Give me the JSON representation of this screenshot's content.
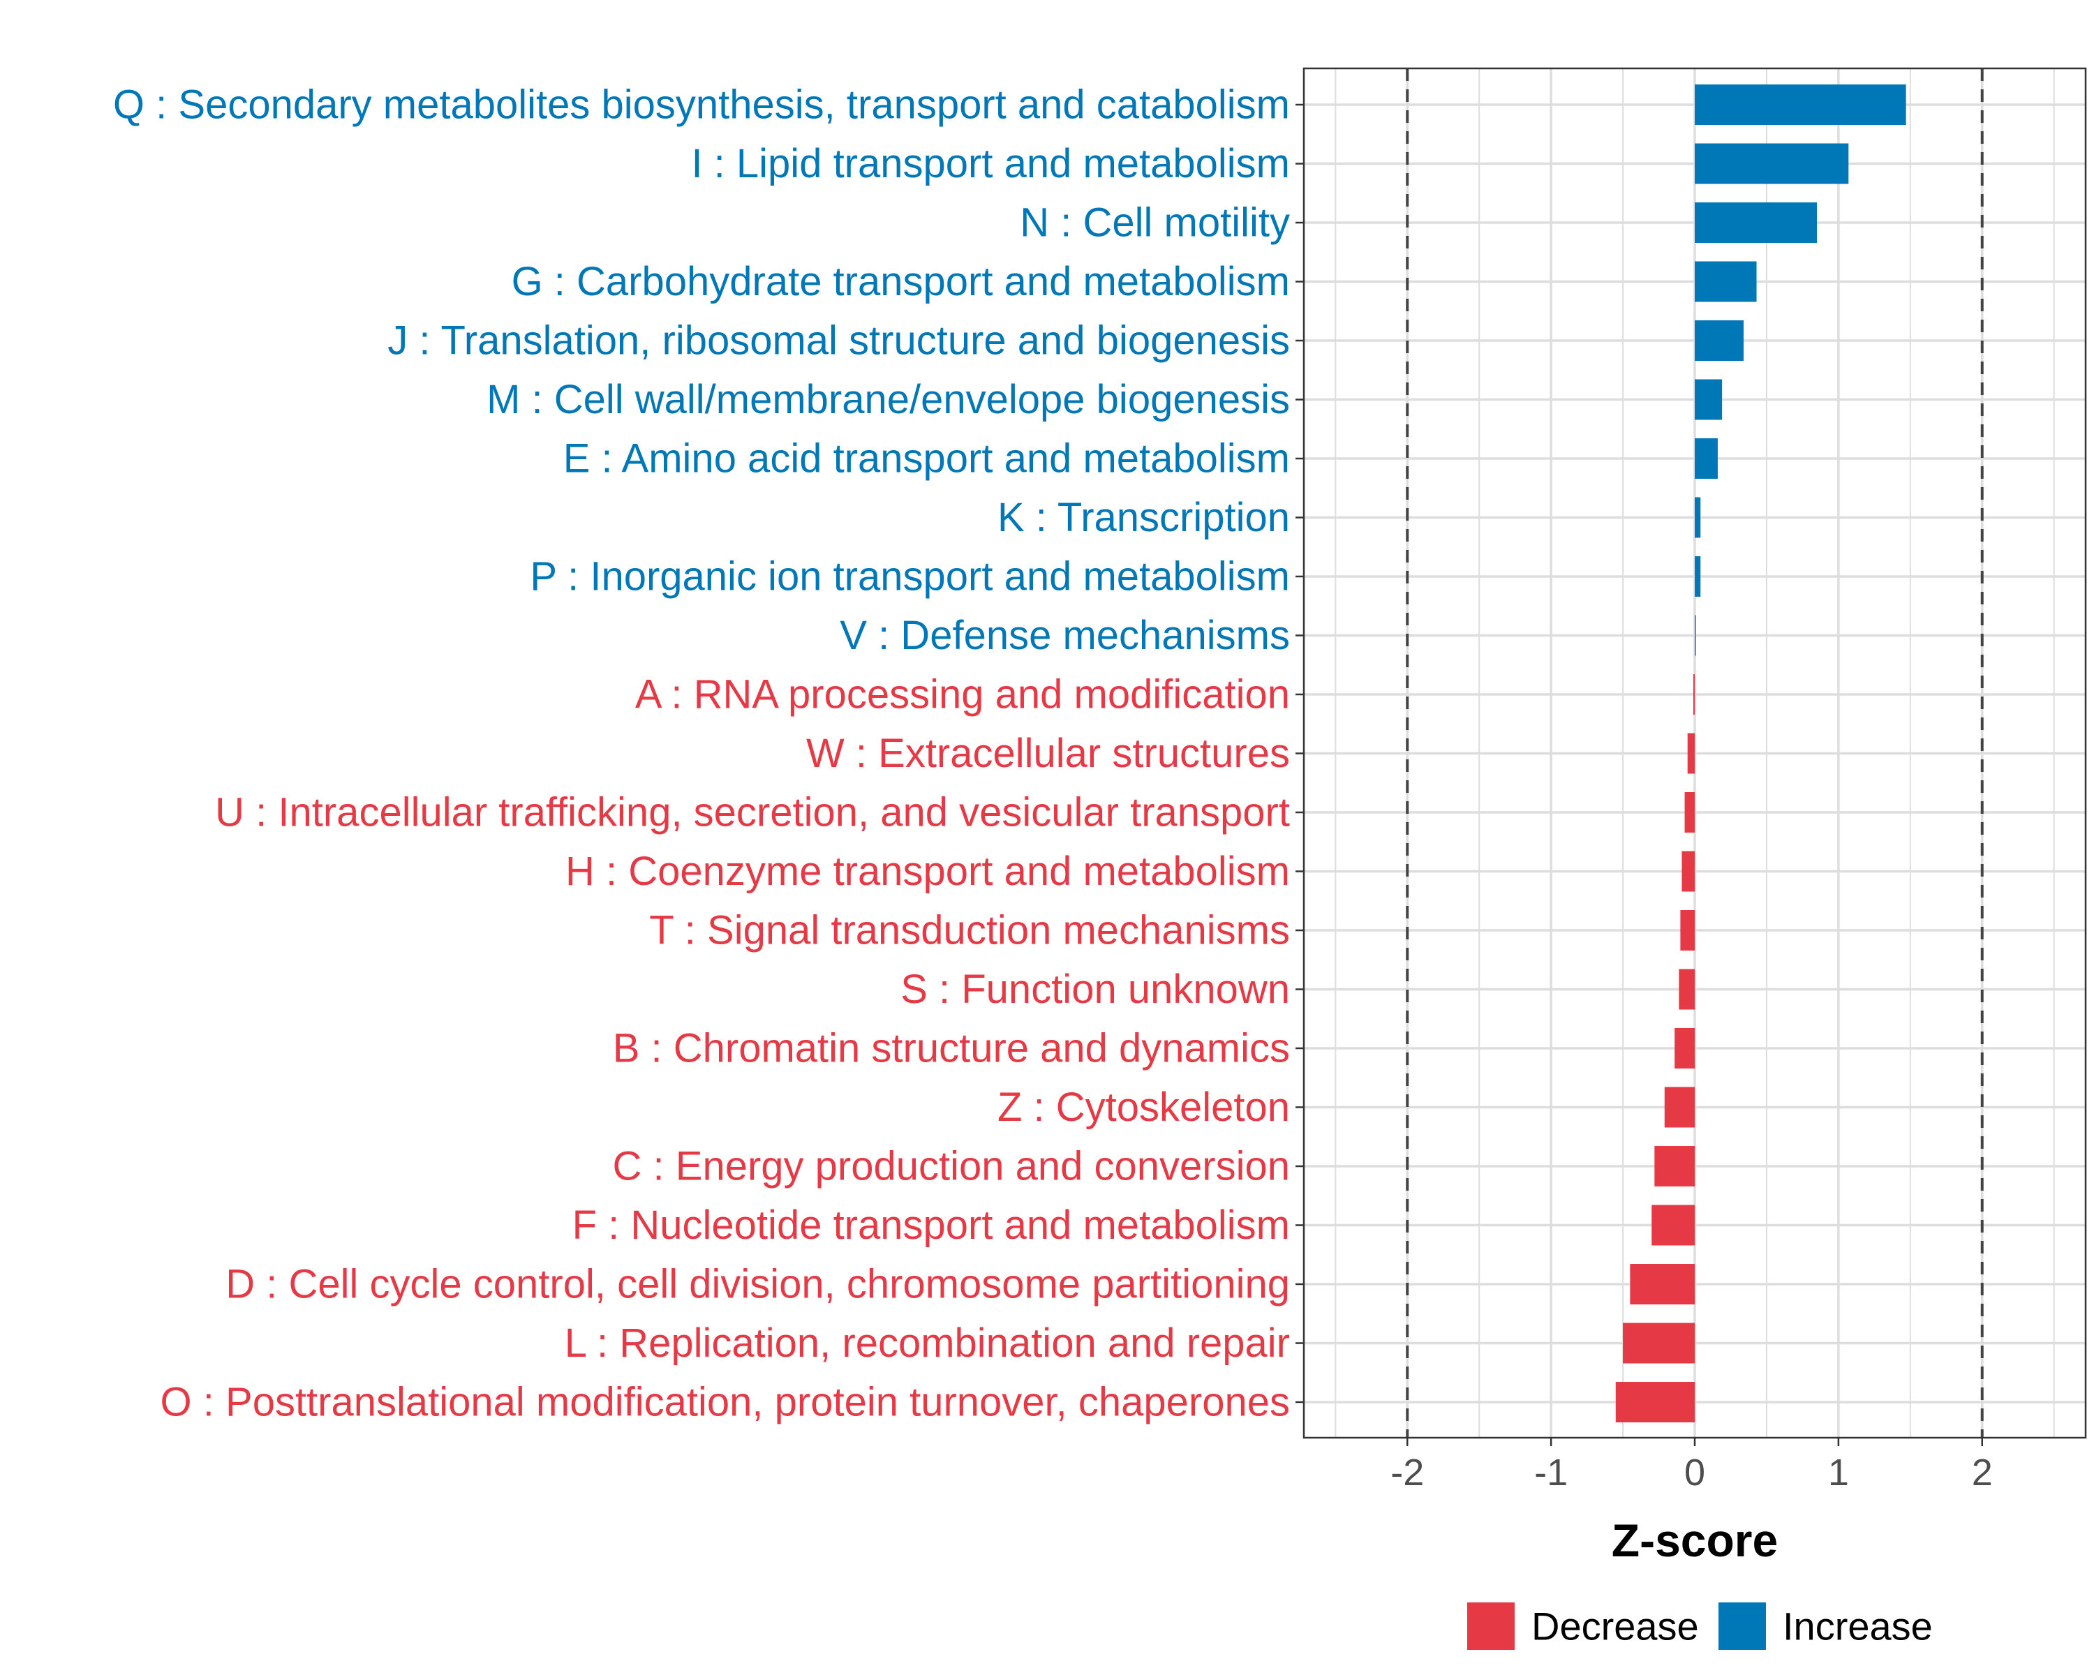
{
  "chart_data": {
    "type": "bar",
    "orientation": "horizontal",
    "xlabel": "Z-score",
    "xlim": [
      -2.72,
      2.72
    ],
    "xticks": [
      -2,
      -1,
      0,
      1,
      2
    ],
    "xtick_labels": [
      "-2",
      "-1",
      "0",
      "1",
      "2"
    ],
    "reference_lines": [
      -2,
      2
    ],
    "grid": true,
    "legend_position": "bottom",
    "colors": {
      "Decrease": "#e63946",
      "Increase": "#0077b6"
    },
    "legend": [
      {
        "key": "Decrease",
        "label": "Decrease"
      },
      {
        "key": "Increase",
        "label": "Increase"
      }
    ],
    "bars": [
      {
        "label": "Q : Secondary metabolites biosynthesis, transport and catabolism",
        "value": 1.47,
        "group": "Increase"
      },
      {
        "label": "I : Lipid transport and metabolism",
        "value": 1.07,
        "group": "Increase"
      },
      {
        "label": "N : Cell motility",
        "value": 0.85,
        "group": "Increase"
      },
      {
        "label": "G : Carbohydrate transport and metabolism",
        "value": 0.43,
        "group": "Increase"
      },
      {
        "label": "J : Translation, ribosomal structure and biogenesis",
        "value": 0.34,
        "group": "Increase"
      },
      {
        "label": "M : Cell wall/membrane/envelope biogenesis",
        "value": 0.19,
        "group": "Increase"
      },
      {
        "label": "E : Amino acid transport and metabolism",
        "value": 0.16,
        "group": "Increase"
      },
      {
        "label": "K : Transcription",
        "value": 0.04,
        "group": "Increase"
      },
      {
        "label": "P : Inorganic ion transport and metabolism",
        "value": 0.04,
        "group": "Increase"
      },
      {
        "label": "V : Defense mechanisms",
        "value": 0.005,
        "group": "Increase"
      },
      {
        "label": "A : RNA processing and modification",
        "value": -0.01,
        "group": "Decrease"
      },
      {
        "label": "W : Extracellular structures",
        "value": -0.05,
        "group": "Decrease"
      },
      {
        "label": "U : Intracellular trafficking, secretion, and vesicular transport",
        "value": -0.07,
        "group": "Decrease"
      },
      {
        "label": "H : Coenzyme transport and metabolism",
        "value": -0.09,
        "group": "Decrease"
      },
      {
        "label": "T : Signal transduction mechanisms",
        "value": -0.1,
        "group": "Decrease"
      },
      {
        "label": "S : Function unknown",
        "value": -0.11,
        "group": "Decrease"
      },
      {
        "label": "B : Chromatin structure and dynamics",
        "value": -0.14,
        "group": "Decrease"
      },
      {
        "label": "Z : Cytoskeleton",
        "value": -0.21,
        "group": "Decrease"
      },
      {
        "label": "C : Energy production and conversion",
        "value": -0.28,
        "group": "Decrease"
      },
      {
        "label": "F : Nucleotide transport and metabolism",
        "value": -0.3,
        "group": "Decrease"
      },
      {
        "label": "D : Cell cycle control, cell division, chromosome partitioning",
        "value": -0.45,
        "group": "Decrease"
      },
      {
        "label": "L : Replication, recombination and repair",
        "value": -0.5,
        "group": "Decrease"
      },
      {
        "label": "O : Posttranslational modification, protein turnover, chaperones",
        "value": -0.55,
        "group": "Decrease"
      }
    ]
  }
}
